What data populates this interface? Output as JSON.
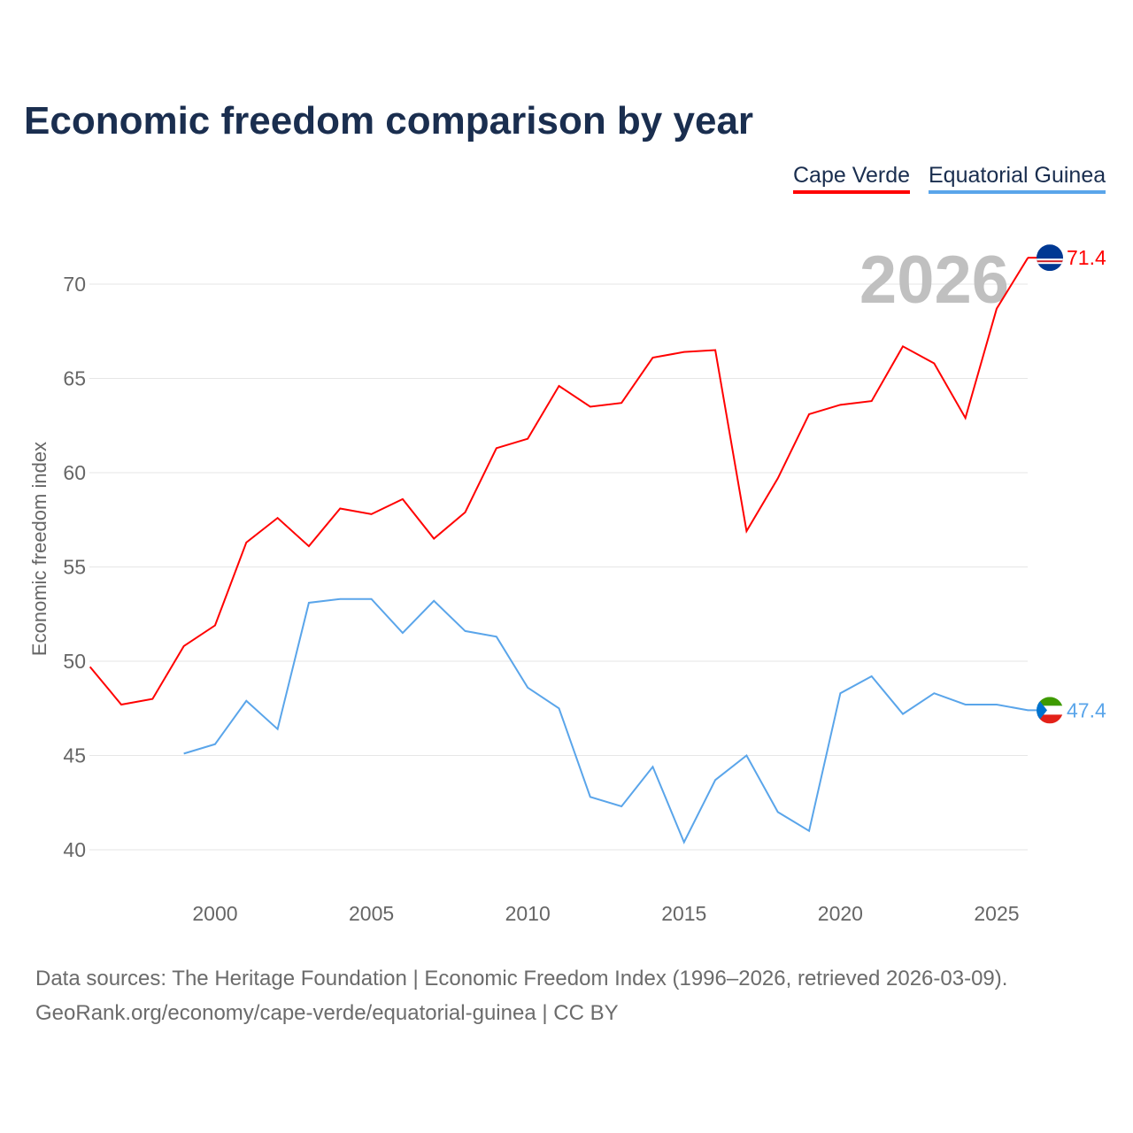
{
  "chart_data": {
    "type": "line",
    "title": "Economic freedom comparison by year",
    "xlabel": "",
    "ylabel": "Economic freedom index",
    "xlim": [
      1996,
      2026
    ],
    "ylim": [
      38,
      73
    ],
    "yticks": [
      40,
      45,
      50,
      55,
      60,
      65,
      70
    ],
    "xticks": [
      2000,
      2005,
      2010,
      2015,
      2020,
      2025
    ],
    "grid": true,
    "legend_position": "top-right",
    "current_year_label": "2026",
    "series": [
      {
        "name": "Cape Verde",
        "color": "#ff0000",
        "end_label": "71.4",
        "flag": "cape-verde",
        "x": [
          1996,
          1997,
          1998,
          1999,
          2000,
          2001,
          2002,
          2003,
          2004,
          2005,
          2006,
          2007,
          2008,
          2009,
          2010,
          2011,
          2012,
          2013,
          2014,
          2015,
          2016,
          2017,
          2018,
          2019,
          2020,
          2021,
          2022,
          2023,
          2024,
          2025,
          2026
        ],
        "values": [
          49.7,
          47.7,
          48.0,
          50.8,
          51.9,
          56.3,
          57.6,
          56.1,
          58.1,
          57.8,
          58.6,
          56.5,
          57.9,
          61.3,
          61.8,
          64.6,
          63.5,
          63.7,
          66.1,
          66.4,
          66.5,
          56.9,
          59.7,
          63.1,
          63.6,
          63.8,
          66.7,
          65.8,
          62.9,
          68.7,
          71.4
        ]
      },
      {
        "name": "Equatorial Guinea",
        "color": "#5aa5ea",
        "end_label": "47.4",
        "flag": "equatorial-guinea",
        "x": [
          1999,
          2000,
          2001,
          2002,
          2003,
          2004,
          2005,
          2006,
          2007,
          2008,
          2009,
          2010,
          2011,
          2012,
          2013,
          2014,
          2015,
          2016,
          2017,
          2018,
          2019,
          2020,
          2021,
          2022,
          2023,
          2024,
          2025,
          2026
        ],
        "values": [
          45.1,
          45.6,
          47.9,
          46.4,
          53.1,
          53.3,
          53.3,
          51.5,
          53.2,
          51.6,
          51.3,
          48.6,
          47.5,
          42.8,
          42.3,
          44.4,
          40.4,
          43.7,
          45.0,
          42.0,
          41.0,
          48.3,
          49.2,
          47.2,
          48.3,
          47.7,
          47.7,
          47.4
        ]
      }
    ]
  },
  "footer": {
    "line1": "Data sources: The Heritage Foundation | Economic Freedom Index (1996–2026, retrieved 2026-03-09).",
    "line2": "GeoRank.org/economy/cape-verde/equatorial-guinea | CC BY"
  }
}
